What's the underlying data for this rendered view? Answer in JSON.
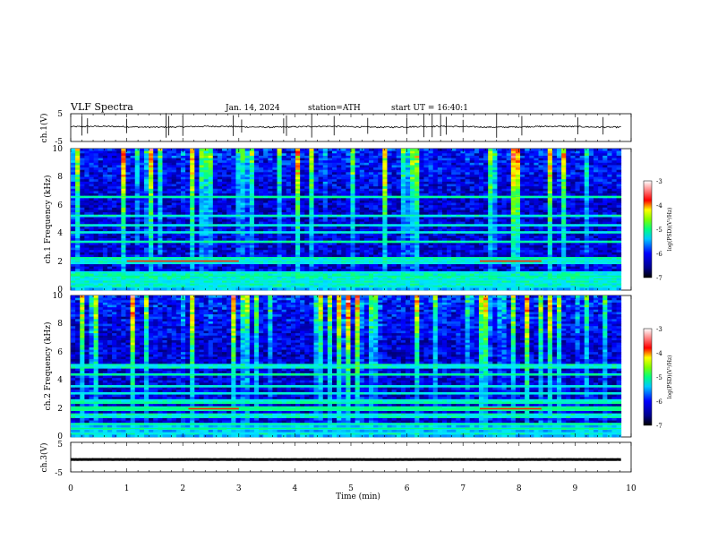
{
  "header": {
    "title": "VLF Spectra",
    "date": "Jan. 14, 2024",
    "station": "station=ATH",
    "start": "start UT = 16:40:1"
  },
  "chart_data": [
    {
      "type": "line",
      "panel": "ch1-waveform",
      "ylabel": "ch.1(V)",
      "ylim": [
        -5,
        5
      ],
      "xlim": [
        0,
        10
      ],
      "yticks": [
        "5",
        "-5"
      ],
      "series": [
        {
          "baseline": 0.3,
          "noise": 0.25,
          "spikes": [
            0.2,
            0.3,
            1.0,
            1.7,
            1.75,
            2.0,
            2.9,
            3.05,
            3.8,
            3.85,
            4.3,
            4.7,
            5.3,
            6.0,
            6.3,
            6.45,
            6.6,
            6.7,
            7.0,
            7.6,
            8.05,
            9.05,
            9.5
          ]
        }
      ]
    },
    {
      "type": "heatmap",
      "panel": "ch1-spectrogram",
      "ylabel": "ch.1 Frequency (kHz)",
      "ylim": [
        0,
        10
      ],
      "xlim": [
        0,
        9.82
      ],
      "yticks": [
        "0",
        "2",
        "4",
        "6",
        "8",
        "10"
      ],
      "colorbar": {
        "label": "log(PSD)(V²/Hz)",
        "ticks": [
          "-3",
          "-4",
          "-5",
          "-6",
          "-7"
        ],
        "range": [
          -7,
          -3
        ]
      },
      "bands_khz": [
        0.2,
        0.5,
        0.7,
        1.0,
        1.3,
        1.9,
        2.1,
        2.3,
        3.4,
        4.1,
        4.6,
        5.2,
        6.6
      ],
      "hot_segments": [
        {
          "from": 1.0,
          "to": 3.0,
          "f": 2.05
        },
        {
          "from": 7.3,
          "to": 8.4,
          "f": 2.05
        }
      ]
    },
    {
      "type": "heatmap",
      "panel": "ch2-spectrogram",
      "ylabel": "ch.2 Frequency (kHz)",
      "ylim": [
        0,
        10
      ],
      "xlim": [
        0,
        9.82
      ],
      "yticks": [
        "0",
        "2",
        "4",
        "6",
        "8",
        "10"
      ],
      "colorbar": {
        "label": "log(PSD)(V²/Hz)",
        "ticks": [
          "-3",
          "-4",
          "-5",
          "-6",
          "-7"
        ],
        "range": [
          -7,
          -3
        ]
      },
      "bands_khz": [
        0.3,
        0.6,
        0.9,
        1.5,
        1.9,
        2.0,
        2.1,
        2.4,
        2.6,
        3.1,
        3.6,
        4.4,
        5.0
      ],
      "hot_segments": [
        {
          "from": 2.1,
          "to": 3.0,
          "f": 2.0
        },
        {
          "from": 7.3,
          "to": 8.4,
          "f": 2.0
        }
      ]
    },
    {
      "type": "line",
      "panel": "ch3-waveform",
      "ylabel": "ch.3(V)",
      "ylim": [
        -5,
        5
      ],
      "xlim": [
        0,
        10
      ],
      "yticks": [
        "5",
        "0",
        "-5"
      ],
      "series": [
        {
          "baseline": -0.8,
          "noise": 0.02,
          "spikes": []
        }
      ]
    }
  ],
  "x_axis": {
    "label": "Time (min)",
    "ticks": [
      "0",
      "1",
      "2",
      "3",
      "4",
      "5",
      "6",
      "7",
      "8",
      "9",
      "10"
    ],
    "range": [
      0,
      10
    ]
  },
  "colors": {
    "background": "#ffffff",
    "axis": "#000000",
    "colormap": [
      "#000000",
      "#00008b",
      "#0000ff",
      "#0090ff",
      "#00e0ff",
      "#00ff80",
      "#7fff00",
      "#ffff00",
      "#ff8000",
      "#ff0000",
      "#ffffff"
    ]
  }
}
